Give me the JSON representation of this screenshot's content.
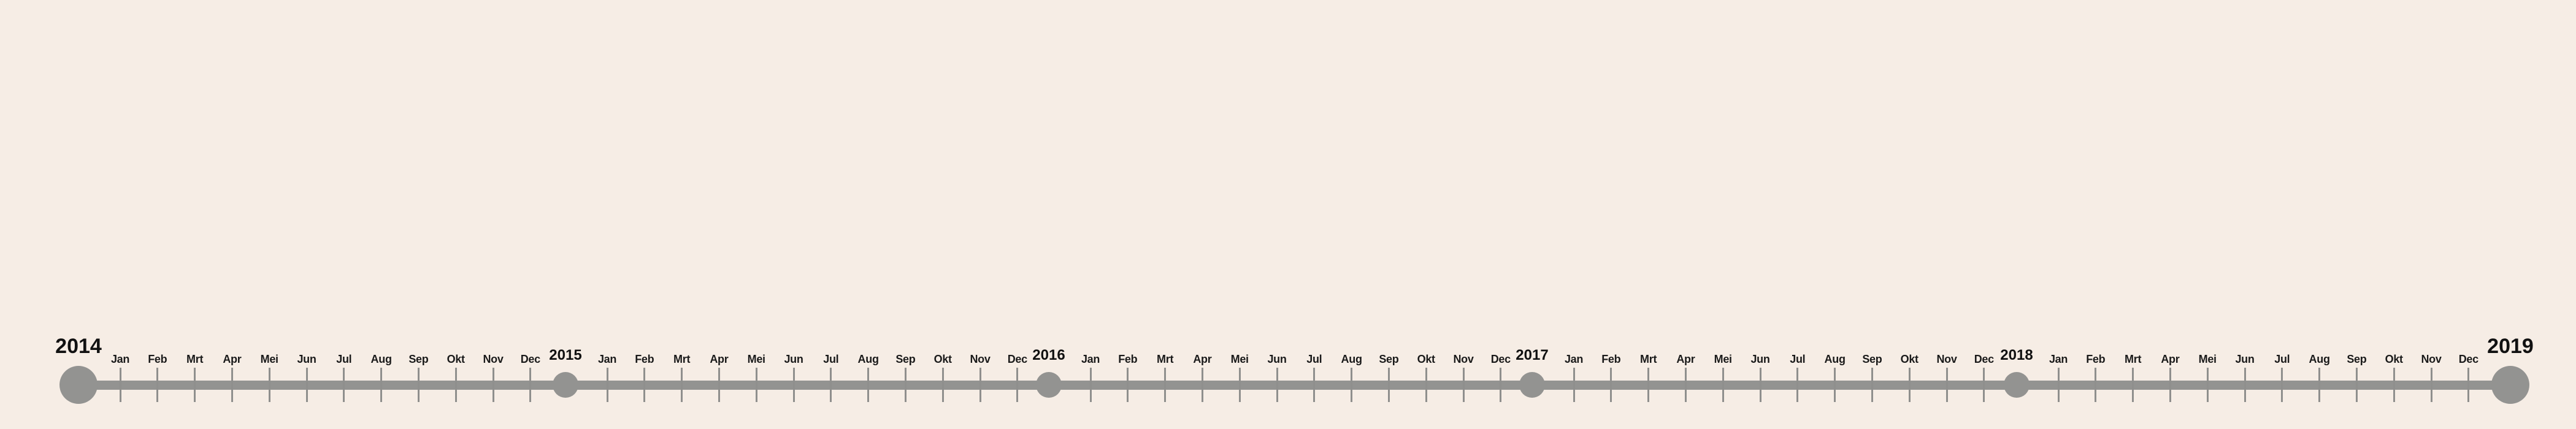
{
  "timeline": {
    "colors": {
      "background": "#f6ede5",
      "line": "#939391",
      "text": "#111111"
    },
    "years": [
      {
        "label": "2014",
        "role": "start"
      },
      {
        "label": "2015",
        "role": "marker"
      },
      {
        "label": "2016",
        "role": "marker"
      },
      {
        "label": "2017",
        "role": "marker"
      },
      {
        "label": "2018",
        "role": "marker"
      },
      {
        "label": "2019",
        "role": "end"
      }
    ],
    "segments": [
      {
        "months": [
          "Jan",
          "Feb",
          "Mrt",
          "Apr",
          "Mei",
          "Jun",
          "Jul",
          "Aug",
          "Sep",
          "Okt",
          "Nov",
          "Dec"
        ]
      },
      {
        "months": [
          "Jan",
          "Feb",
          "Mrt",
          "Apr",
          "Mei",
          "Jun",
          "Jul",
          "Aug",
          "Sep",
          "Okt",
          "Nov",
          "Dec"
        ]
      },
      {
        "months": [
          "Jan",
          "Feb",
          "Mrt",
          "Apr",
          "Mei",
          "Jun",
          "Jul",
          "Aug",
          "Sep",
          "Okt",
          "Nov",
          "Dec"
        ]
      },
      {
        "months": [
          "Jan",
          "Feb",
          "Mrt",
          "Apr",
          "Mei",
          "Jun",
          "Jul",
          "Aug",
          "Sep",
          "Okt",
          "Nov",
          "Dec"
        ]
      },
      {
        "months": [
          "Jan",
          "Feb",
          "Mrt",
          "Apr",
          "Mei",
          "Jun",
          "Jul",
          "Aug",
          "Sep",
          "Okt",
          "Nov",
          "Dec"
        ]
      }
    ]
  }
}
